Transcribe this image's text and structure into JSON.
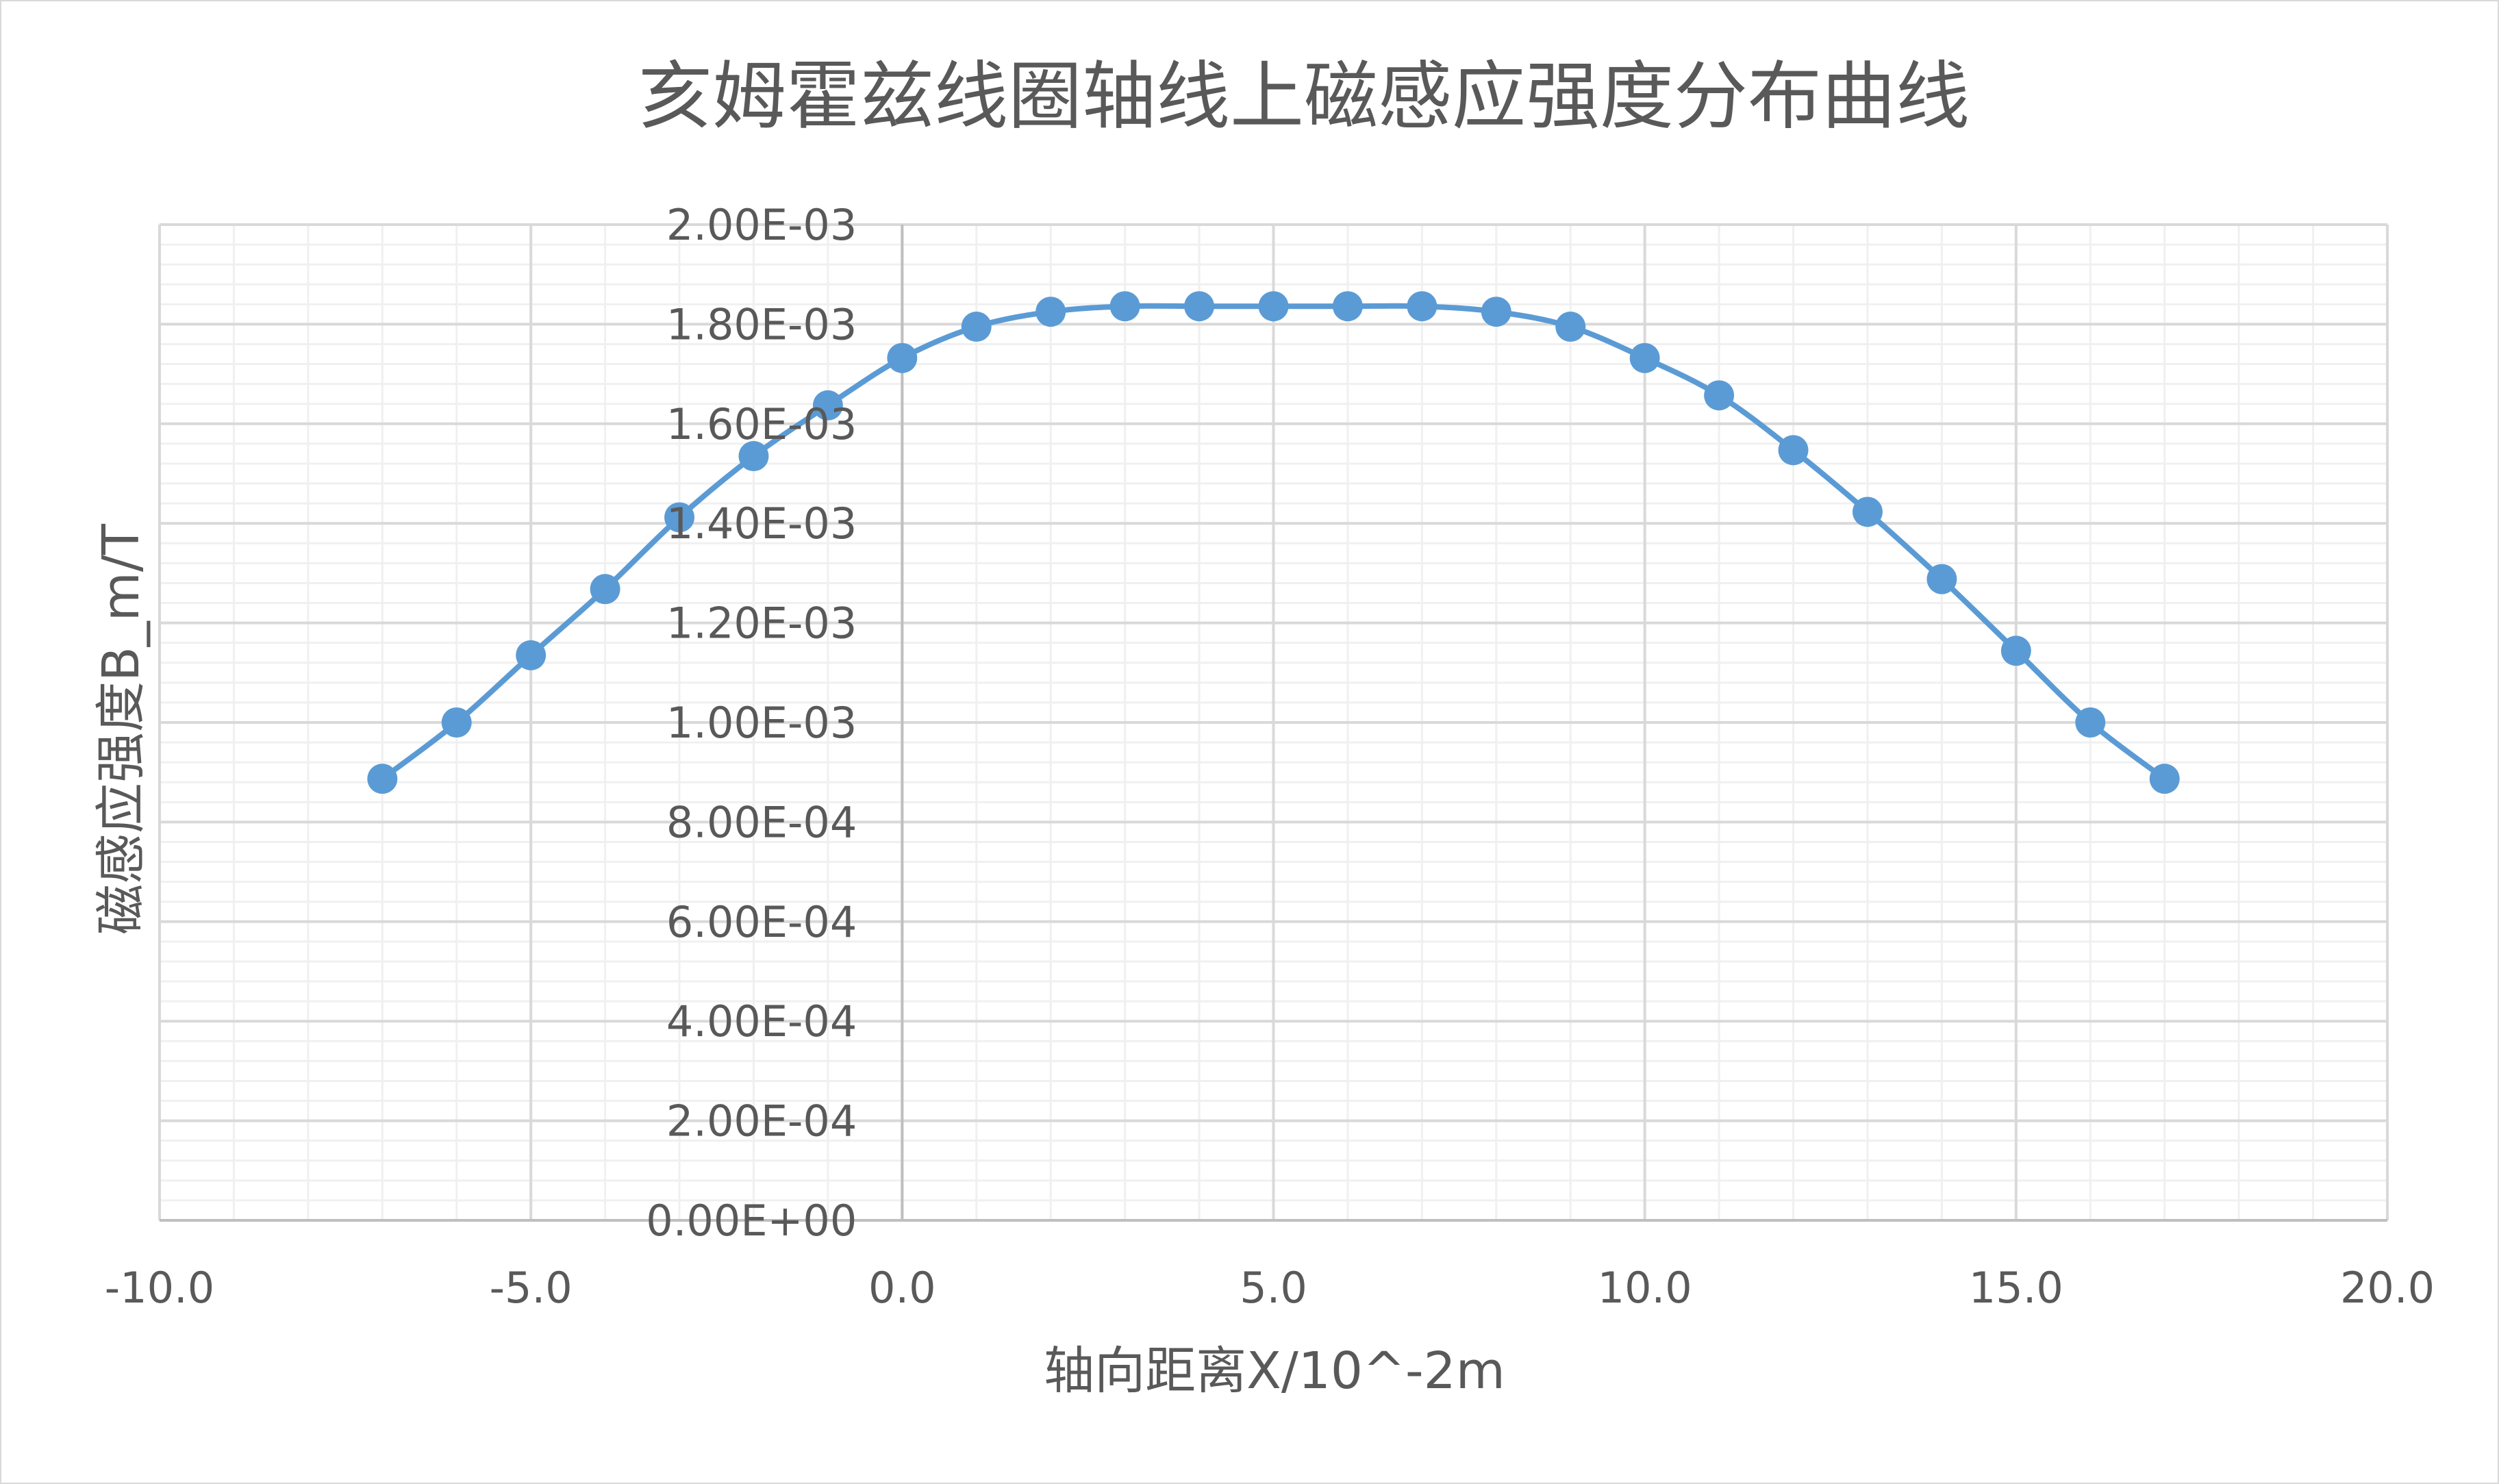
{
  "chart_data": {
    "type": "scatter",
    "title": "亥姆霍兹线圈轴线上磁感应强度分布曲线",
    "xlabel": "轴向距离X/10^-2m",
    "ylabel": "磁感应强度B_m/T",
    "xlim": [
      -10.0,
      20.0
    ],
    "ylim": [
      0,
      0.002
    ],
    "x_major": 5.0,
    "y_major": 0.0002,
    "x_tick_labels": [
      "-10.0",
      "-5.0",
      "0.0",
      "5.0",
      "10.0",
      "15.0",
      "20.0"
    ],
    "y_tick_labels": [
      "0.00E+00",
      "2.00E-04",
      "4.00E-04",
      "6.00E-04",
      "8.00E-04",
      "1.00E-03",
      "1.20E-03",
      "1.40E-03",
      "1.60E-03",
      "1.80E-03",
      "2.00E-03"
    ],
    "grid": true,
    "smooth_line": true,
    "color": "#5b9bd5",
    "series": [
      {
        "x": [
          -7,
          -6,
          -5,
          -4,
          -3,
          -2,
          -1,
          0,
          1,
          2,
          3,
          4,
          5,
          6,
          7,
          8,
          9,
          10,
          11,
          12,
          13,
          14,
          15,
          16,
          17
        ],
        "y": [
          0.000887,
          0.001,
          0.001135,
          0.001268,
          0.001412,
          0.001535,
          0.001637,
          0.001732,
          0.001795,
          0.001825,
          0.001836,
          0.001836,
          0.001836,
          0.001836,
          0.001836,
          0.001825,
          0.001795,
          0.001732,
          0.001657,
          0.001547,
          0.001423,
          0.001288,
          0.001144,
          0.001,
          0.000887
        ]
      }
    ]
  }
}
